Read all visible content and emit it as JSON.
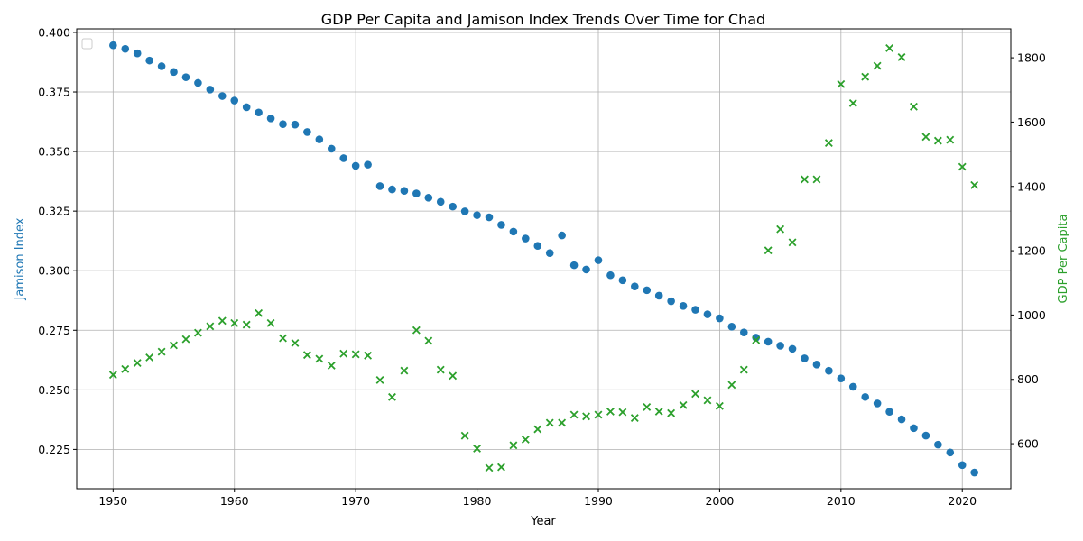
{
  "chart_data": {
    "type": "scatter",
    "title": "GDP Per Capita and Jamison Index Trends Over Time for Chad",
    "xlabel": "Year",
    "ylabel_left": "Jamison Index",
    "ylabel_right": "GDP Per Capita",
    "xlim": [
      1947,
      2024
    ],
    "ylim_left": [
      0.2085,
      0.4015
    ],
    "ylim_right": [
      460,
      1890
    ],
    "x_ticks": [
      1950,
      1960,
      1970,
      1980,
      1990,
      2000,
      2010,
      2020
    ],
    "y_left_ticks": [
      0.225,
      0.25,
      0.275,
      0.3,
      0.325,
      0.35,
      0.375,
      0.4
    ],
    "y_right_ticks": [
      600,
      800,
      1000,
      1200,
      1400,
      1600,
      1800
    ],
    "grid": true,
    "legend": "top-left (empty)",
    "colors": {
      "jamison": "#1f77b4",
      "gdp": "#2ca02c"
    },
    "series": [
      {
        "axis": "left",
        "marker": "circle",
        "x": [
          1950,
          1951,
          1952,
          1953,
          1954,
          1955,
          1956,
          1957,
          1958,
          1959,
          1960,
          1961,
          1962,
          1963,
          1964,
          1965,
          1966,
          1967,
          1968,
          1969,
          1970,
          1971,
          1972,
          1973,
          1974,
          1975,
          1976,
          1977,
          1978,
          1979,
          1980,
          1981,
          1982,
          1983,
          1984,
          1985,
          1986,
          1987,
          1988,
          1989,
          1990,
          1991,
          1992,
          1993,
          1994,
          1995,
          1996,
          1997,
          1998,
          1999,
          2000,
          2001,
          2002,
          2003,
          2004,
          2005,
          2006,
          2007,
          2008,
          2009,
          2010,
          2011,
          2012,
          2013,
          2014,
          2015,
          2016,
          2017,
          2018,
          2019,
          2020,
          2021
        ],
        "values": [
          0.3946,
          0.3931,
          0.3912,
          0.3882,
          0.3858,
          0.3834,
          0.3812,
          0.3788,
          0.376,
          0.3733,
          0.3714,
          0.3686,
          0.3664,
          0.3639,
          0.3615,
          0.3613,
          0.3582,
          0.3551,
          0.3512,
          0.3472,
          0.344,
          0.3445,
          0.3355,
          0.3341,
          0.3335,
          0.3324,
          0.3306,
          0.3289,
          0.3269,
          0.3249,
          0.3233,
          0.3224,
          0.3192,
          0.3164,
          0.3135,
          0.3104,
          0.3074,
          0.3148,
          0.3023,
          0.3005,
          0.3044,
          0.2981,
          0.296,
          0.2934,
          0.2918,
          0.2895,
          0.2872,
          0.2852,
          0.2836,
          0.2817,
          0.28,
          0.2765,
          0.2741,
          0.2719,
          0.2702,
          0.2685,
          0.2672,
          0.2632,
          0.2606,
          0.258,
          0.2548,
          0.2513,
          0.247,
          0.2443,
          0.2408,
          0.2376,
          0.2339,
          0.2308,
          0.227,
          0.2237,
          0.2184,
          0.2153
        ]
      },
      {
        "axis": "right",
        "marker": "x",
        "x": [
          1950,
          1951,
          1952,
          1953,
          1954,
          1955,
          1956,
          1957,
          1958,
          1959,
          1960,
          1961,
          1962,
          1963,
          1964,
          1965,
          1966,
          1967,
          1968,
          1969,
          1970,
          1971,
          1972,
          1973,
          1974,
          1975,
          1976,
          1977,
          1978,
          1979,
          1980,
          1981,
          1982,
          1983,
          1984,
          1985,
          1986,
          1987,
          1988,
          1989,
          1990,
          1991,
          1992,
          1993,
          1994,
          1995,
          1996,
          1997,
          1998,
          1999,
          2000,
          2001,
          2002,
          2003,
          2004,
          2005,
          2006,
          2007,
          2008,
          2009,
          2010,
          2011,
          2012,
          2013,
          2014,
          2015,
          2016,
          2017,
          2018,
          2019,
          2020,
          2021
        ],
        "values": [
          814,
          832,
          851,
          868,
          886,
          906,
          925,
          945,
          965,
          982,
          975,
          970,
          1006,
          975,
          928,
          913,
          876,
          864,
          843,
          880,
          878,
          874,
          798,
          745,
          827,
          953,
          920,
          830,
          811,
          625,
          585,
          525,
          527,
          595,
          613,
          645,
          665,
          665,
          690,
          685,
          690,
          700,
          698,
          680,
          714,
          700,
          695,
          720,
          755,
          735,
          717,
          783,
          830,
          922,
          1201,
          1267,
          1226,
          1422,
          1422,
          1535,
          1718,
          1659,
          1741,
          1775,
          1830,
          1802,
          1648,
          1554,
          1542,
          1545,
          1461,
          1404
        ]
      }
    ]
  }
}
